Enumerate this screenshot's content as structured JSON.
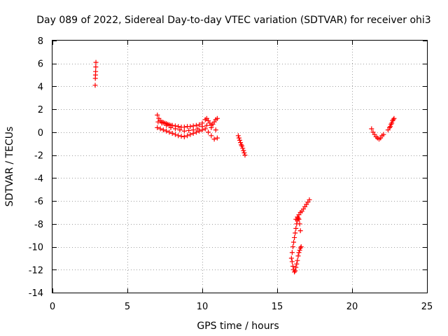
{
  "chart_data": {
    "type": "scatter",
    "title": "Day 089 of 2022, Sidereal Day-to-day VTEC variation (SDTVAR) for receiver ohi3",
    "xlabel": "GPS time / hours",
    "ylabel": "SDTVAR / TECUs",
    "xlim": [
      0,
      25
    ],
    "ylim": [
      -14,
      8
    ],
    "xticks": [
      0,
      5,
      10,
      15,
      20,
      25
    ],
    "xtick_labels": [
      "0",
      "5",
      "10",
      "15",
      "20",
      "25"
    ],
    "yticks": [
      -14,
      -12,
      -10,
      -8,
      -6,
      -4,
      -2,
      0,
      2,
      4,
      6,
      8
    ],
    "ytick_labels": [
      "-14",
      "-12",
      "-10",
      "-8",
      "-6",
      "-4",
      "-2",
      "0",
      "2",
      "4",
      "6",
      "8"
    ],
    "grid": true,
    "marker": "+",
    "color": "#ff0000",
    "series": [
      {
        "name": "ohi3",
        "x": [
          2.85,
          2.86,
          2.87,
          2.88,
          2.89,
          2.9,
          7.0,
          7.1,
          7.2,
          7.3,
          7.4,
          7.5,
          7.6,
          7.7,
          7.8,
          7.9,
          8.0,
          8.2,
          8.4,
          8.6,
          8.8,
          9.0,
          9.2,
          9.4,
          9.6,
          9.8,
          10.0,
          10.2,
          10.3,
          10.4,
          10.5,
          10.6,
          10.7,
          10.8,
          10.9,
          11.0,
          7.0,
          7.2,
          7.4,
          7.6,
          7.8,
          8.0,
          8.2,
          8.4,
          8.6,
          8.8,
          9.0,
          9.2,
          9.4,
          9.6,
          9.8,
          10.0,
          10.2,
          10.4,
          10.6,
          10.8,
          11.0,
          7.05,
          7.3,
          7.6,
          7.9,
          8.2,
          8.5,
          8.8,
          9.1,
          9.4,
          9.7,
          10.0,
          10.3,
          10.6,
          10.9,
          12.4,
          12.45,
          12.5,
          12.55,
          12.6,
          12.65,
          12.7,
          12.75,
          12.8,
          12.85,
          16.0,
          16.05,
          16.1,
          16.15,
          16.2,
          16.25,
          16.3,
          16.35,
          16.4,
          16.45,
          16.5,
          16.55,
          16.6,
          15.95,
          16.0,
          16.05,
          16.1,
          16.15,
          16.2,
          16.25,
          16.3,
          16.35,
          16.4,
          16.45,
          16.5,
          16.55,
          16.25,
          16.35,
          16.45,
          16.55,
          16.65,
          16.75,
          16.85,
          16.95,
          17.05,
          17.15,
          21.3,
          21.4,
          21.5,
          21.6,
          21.7,
          21.8,
          21.9,
          22.0,
          22.1,
          22.4,
          22.5,
          22.55,
          22.6,
          22.65,
          22.7,
          22.75,
          22.8
        ],
        "y": [
          4.1,
          4.7,
          5.0,
          5.3,
          5.7,
          6.1,
          1.5,
          1.2,
          1.0,
          0.9,
          0.85,
          0.8,
          0.75,
          0.7,
          0.65,
          0.6,
          0.6,
          0.55,
          0.5,
          0.45,
          0.45,
          0.5,
          0.5,
          0.55,
          0.6,
          0.65,
          0.8,
          1.1,
          1.2,
          1.0,
          0.8,
          0.6,
          0.7,
          0.9,
          1.1,
          1.2,
          0.4,
          0.3,
          0.2,
          0.1,
          0.0,
          -0.1,
          -0.2,
          -0.3,
          -0.35,
          -0.4,
          -0.3,
          -0.2,
          -0.1,
          0.0,
          0.1,
          0.2,
          0.3,
          0.0,
          -0.3,
          -0.6,
          -0.5,
          0.9,
          0.8,
          0.6,
          0.4,
          0.3,
          0.2,
          0.1,
          0.15,
          0.2,
          0.3,
          0.5,
          0.6,
          0.4,
          0.2,
          -0.3,
          -0.5,
          -0.7,
          -0.9,
          -1.1,
          -1.2,
          -1.4,
          -1.6,
          -1.8,
          -2.0,
          -11.3,
          -11.7,
          -12.0,
          -12.2,
          -12.1,
          -11.8,
          -11.5,
          -11.2,
          -10.8,
          -10.5,
          -10.3,
          -10.1,
          -10.0,
          -11.0,
          -10.5,
          -10.0,
          -9.6,
          -9.2,
          -8.8,
          -8.4,
          -8.0,
          -7.7,
          -7.5,
          -7.6,
          -8.0,
          -8.6,
          -7.6,
          -7.4,
          -7.2,
          -7.0,
          -6.9,
          -6.7,
          -6.5,
          -6.3,
          -6.1,
          -5.9,
          0.3,
          0.0,
          -0.2,
          -0.4,
          -0.5,
          -0.6,
          -0.5,
          -0.3,
          -0.2,
          0.2,
          0.4,
          0.5,
          0.7,
          0.8,
          1.0,
          1.1,
          1.2
        ]
      }
    ]
  }
}
